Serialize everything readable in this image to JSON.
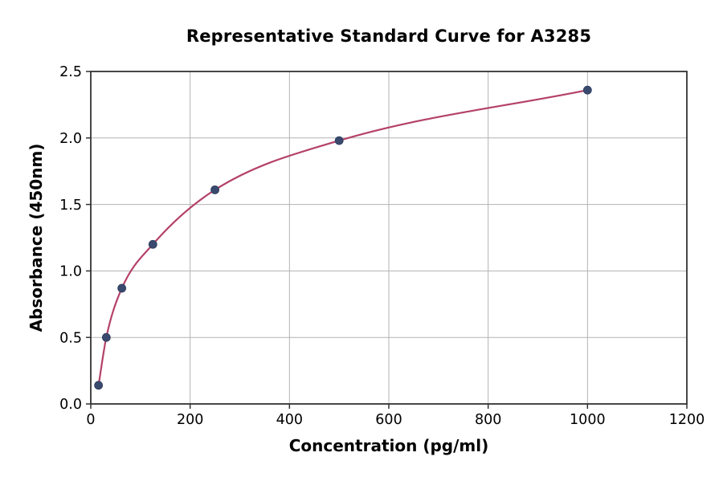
{
  "chart_data": {
    "type": "line",
    "title": "Representative Standard Curve for A3285",
    "xlabel": "Concentration (pg/ml)",
    "ylabel": "Absorbance (450nm)",
    "xlim": [
      0,
      1200
    ],
    "ylim": [
      0,
      2.5
    ],
    "x_ticks": [
      0,
      200,
      400,
      600,
      800,
      1000,
      1200
    ],
    "x_tick_labels": [
      "0",
      "200",
      "400",
      "600",
      "800",
      "1000",
      "1200"
    ],
    "y_ticks": [
      0,
      0.5,
      1.0,
      1.5,
      2.0,
      2.5
    ],
    "y_tick_labels": [
      "0.0",
      "0.5",
      "1.0",
      "1.5",
      "2.0",
      "2.5"
    ],
    "grid": true,
    "legend": "none",
    "series": [
      {
        "name": "standard-curve",
        "x": [
          15.6,
          31.25,
          62.5,
          125,
          250,
          500,
          1000
        ],
        "y": [
          0.14,
          0.5,
          0.87,
          1.2,
          1.61,
          1.98,
          2.36
        ],
        "marker": "circle",
        "curve": "smooth-fit"
      }
    ]
  },
  "colors": {
    "line": "#b4416a",
    "marker": "#3a4a6e",
    "marker_edge": "#2d3c5d",
    "grid": "#b3b3b3",
    "spine": "#333333",
    "tick_text": "#000000",
    "background": "#ffffff"
  }
}
